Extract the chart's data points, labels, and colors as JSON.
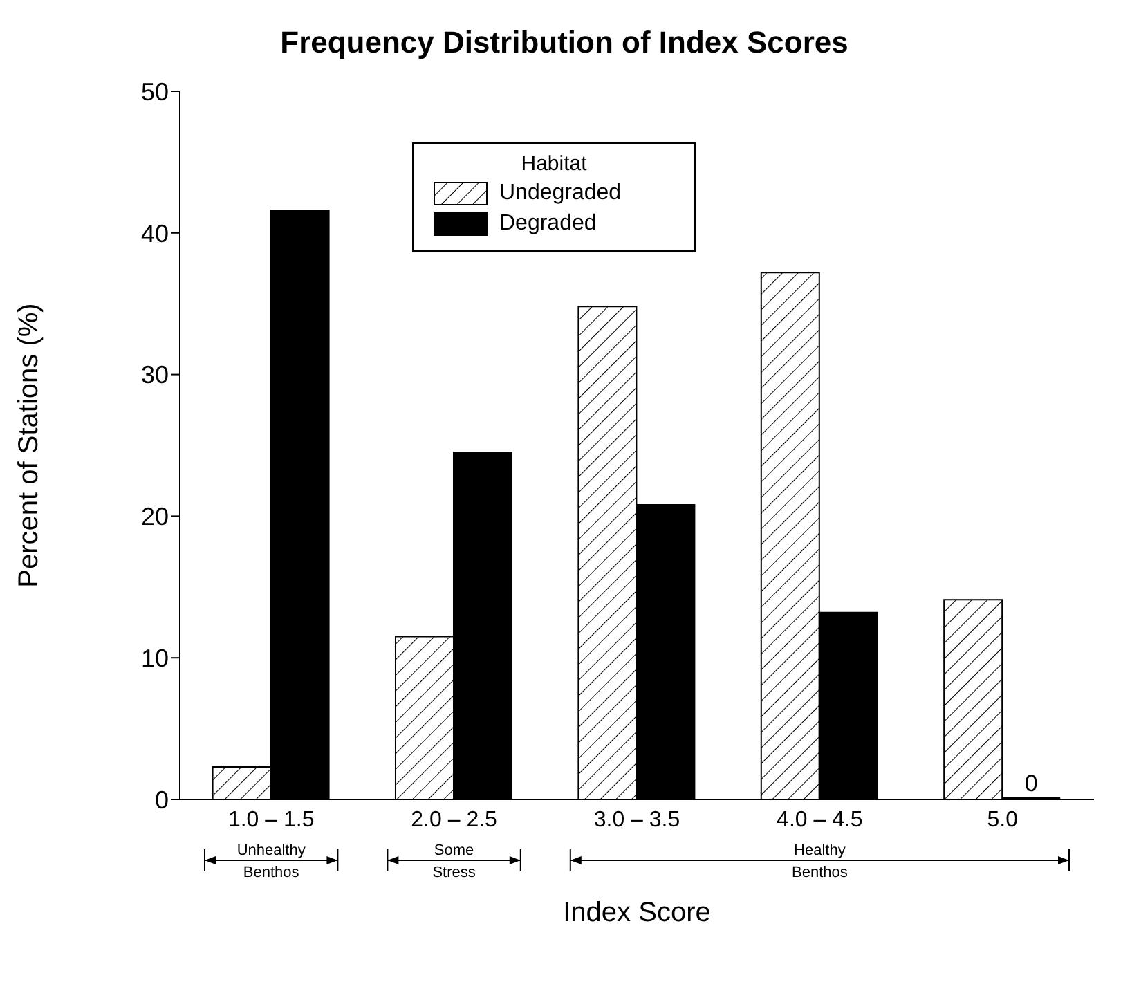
{
  "chart_data": {
    "type": "bar",
    "title": "Frequency Distribution of Index Scores",
    "xlabel": "Index Score",
    "ylabel": "Percent of Stations (%)",
    "legend_title": "Habitat",
    "categories": [
      "1.0 – 1.5",
      "2.0 – 2.5",
      "3.0 – 3.5",
      "4.0 – 4.5",
      "5.0"
    ],
    "series": [
      {
        "name": "Undegraded",
        "color": "#ffffff",
        "values": [
          2.3,
          11.5,
          34.8,
          37.2,
          14.1
        ]
      },
      {
        "name": "Degraded",
        "color": "#000000",
        "values": [
          41.6,
          24.5,
          20.8,
          13.2,
          0
        ],
        "value_labels": [
          null,
          null,
          null,
          null,
          "0"
        ]
      }
    ],
    "ylim": [
      0,
      50
    ],
    "yticks": [
      0,
      10,
      20,
      30,
      40,
      50
    ],
    "grid": false,
    "legend": "top",
    "annotations": [
      "Unhealthy Benthos",
      "Some Stress",
      "Healthy Benthos"
    ]
  }
}
